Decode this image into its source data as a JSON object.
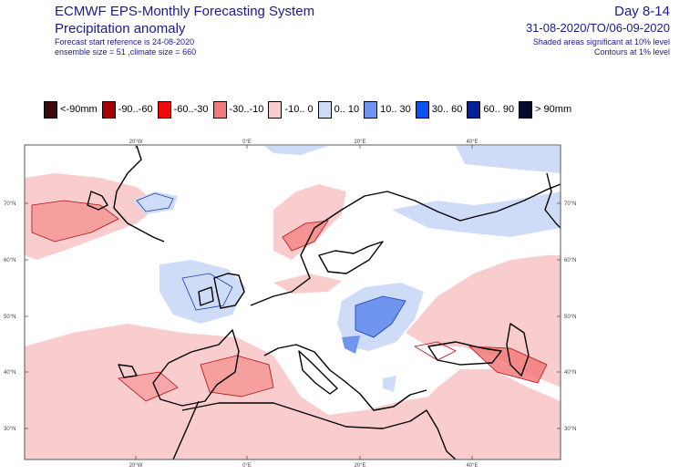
{
  "header": {
    "system": "ECMWF EPS-Monthly Forecasting System",
    "product": "Precipitation anomaly",
    "start_ref": "Forecast start reference is 24-08-2020",
    "sizes": "ensemble size = 51  ,climate size = 660",
    "days": "Day 8-14",
    "period": "31-08-2020/TO/06-09-2020",
    "shaded_note": "Shaded areas significant at 10% level",
    "contours_note": "Contours at 1% level"
  },
  "legend": [
    {
      "label": "<-90mm",
      "color": "#3b0a0a"
    },
    {
      "label": "-90..-60",
      "color": "#a80000"
    },
    {
      "label": "-60..-30",
      "color": "#f00a0a"
    },
    {
      "label": "-30..-10",
      "color": "#f37a7a"
    },
    {
      "label": "-10..  0",
      "color": "#f9cdcd"
    },
    {
      "label": "0.. 10",
      "color": "#cfdcf8"
    },
    {
      "label": "10.. 30",
      "color": "#6f95ee"
    },
    {
      "label": "30.. 60",
      "color": "#0a52f5"
    },
    {
      "label": "60.. 90",
      "color": "#05219a"
    },
    {
      "label": "> 90mm",
      "color": "#050a2e"
    }
  ],
  "map": {
    "lon_labels": [
      "20°W",
      "0°E",
      "20°E",
      "40°E"
    ],
    "lat_labels": [
      "70°N",
      "60°N",
      "50°N",
      "40°N",
      "30°N"
    ]
  }
}
